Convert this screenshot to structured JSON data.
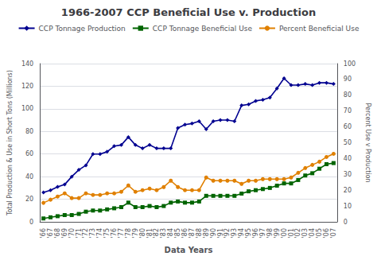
{
  "chart_data": {
    "type": "line",
    "title": "1966-2007 CCP Beneficial Use v. Production",
    "xlabel": "Data Years",
    "ylabel": "Total Production & Use in Short Tons (Millions)",
    "y2label": "Percent Use v Production",
    "categories": [
      "'66",
      "'67",
      "'68",
      "'69",
      "'70",
      "'71",
      "'72",
      "'73",
      "'74",
      "'75",
      "'76",
      "'77",
      "'78",
      "'79",
      "'80",
      "'81",
      "'82",
      "'83",
      "'84",
      "'85",
      "'86",
      "'87",
      "'88",
      "'89",
      "'90",
      "'91",
      "'92",
      "'93",
      "'94",
      "'95",
      "'96",
      "'97",
      "'98",
      "'99",
      "'00",
      "'01",
      "'02",
      "'03",
      "'04",
      "'05",
      "'06",
      "'07"
    ],
    "series": [
      {
        "name": "CCP Tonnage Production",
        "color": "#000090",
        "marker": "diamond",
        "values": [
          26,
          28,
          31,
          33,
          40,
          46,
          50,
          60,
          60,
          62,
          67,
          68,
          75,
          68,
          65,
          68,
          65,
          65,
          65,
          83,
          86,
          87,
          89,
          82,
          89,
          90,
          90,
          89,
          103,
          104,
          107,
          108,
          110,
          118,
          127,
          121,
          121,
          122,
          121,
          123,
          123,
          122
        ]
      },
      {
        "name": "CCP Tonnage Beneficial Use",
        "color": "#006400",
        "marker": "square",
        "values": [
          3,
          4,
          5,
          6,
          6,
          7,
          9,
          10,
          10,
          11,
          12,
          13,
          17,
          13,
          13,
          14,
          13,
          14,
          17,
          18,
          17,
          17,
          18,
          23,
          23,
          23,
          23,
          23,
          25,
          27,
          28,
          29,
          30,
          32,
          34,
          34,
          37,
          41,
          43,
          47,
          51,
          52
        ]
      },
      {
        "name": "Percent Beneficial Use",
        "color": "#E08000",
        "marker": "circle",
        "axis": "y2",
        "values": [
          12,
          14,
          16,
          18,
          15,
          15,
          18,
          17,
          17,
          18,
          18,
          19,
          23,
          19,
          20,
          21,
          20,
          22,
          26,
          22,
          20,
          20,
          20,
          28,
          26,
          26,
          26,
          26,
          24,
          26,
          26,
          27,
          27,
          27,
          27,
          28,
          31,
          34,
          36,
          38,
          41,
          43
        ]
      }
    ],
    "ylim": [
      0,
      140
    ],
    "yticks": [
      0,
      20,
      40,
      60,
      80,
      100,
      120,
      140
    ],
    "y2lim": [
      0,
      100
    ],
    "y2ticks": [
      0,
      10,
      20,
      30,
      40,
      50,
      60,
      70,
      80,
      90,
      100
    ],
    "grid": true,
    "legend": "top"
  }
}
